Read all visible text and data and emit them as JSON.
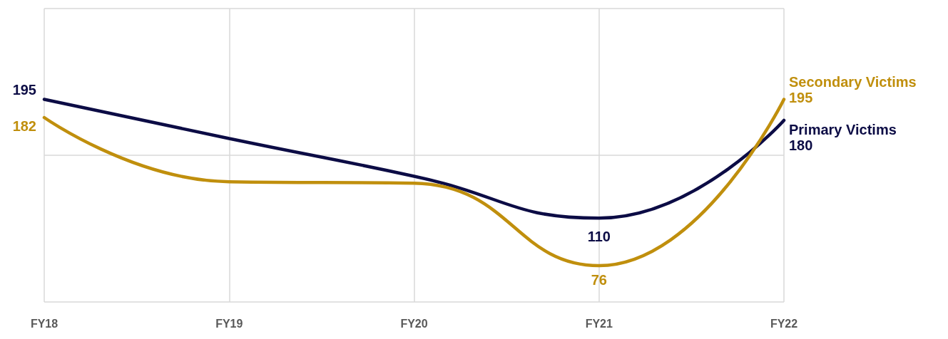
{
  "chart_data": {
    "type": "line",
    "categories": [
      "FY18",
      "FY19",
      "FY20",
      "FY21",
      "FY22"
    ],
    "series": [
      {
        "name": "Primary Victims",
        "color": "#0c0c45",
        "values": [
          195,
          167,
          140,
          110,
          180
        ],
        "value_labels": [
          "195",
          null,
          null,
          "110",
          "180"
        ]
      },
      {
        "name": "Secondary Victims",
        "color": "#c08f0d",
        "values": [
          182,
          136,
          135,
          76,
          195
        ],
        "value_labels": [
          "182",
          null,
          null,
          "76",
          "195"
        ]
      }
    ],
    "ylim": [
      50,
      260
    ],
    "yticks": [
      {
        "value": 50,
        "label": null
      },
      {
        "value": 155,
        "label": null
      },
      {
        "value": 260,
        "label": null
      }
    ],
    "tick_labels": "x",
    "grid": true,
    "marker": "none",
    "line_style": "solid",
    "legend": false
  }
}
